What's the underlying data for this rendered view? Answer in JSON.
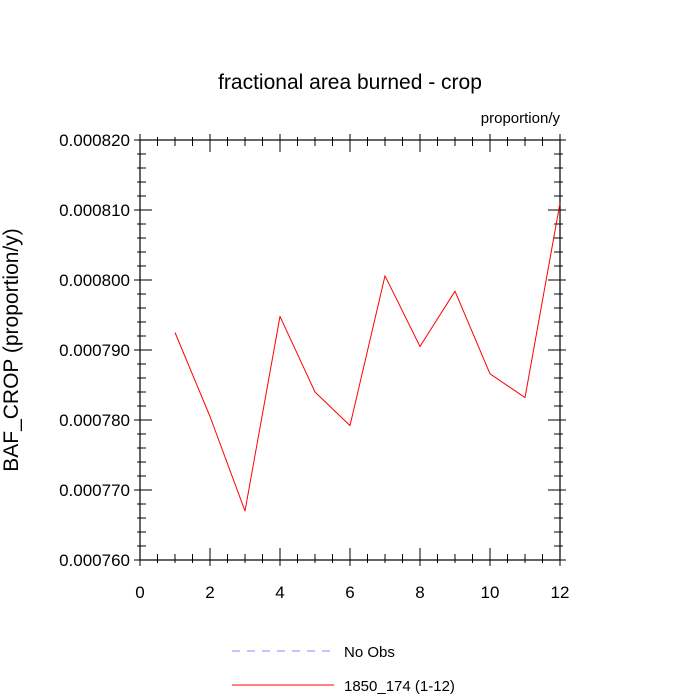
{
  "chart_data": {
    "type": "line",
    "title": "fractional area burned - crop",
    "units_label": "proportion/y",
    "ylabel": "BAF_CROP  (proportion/y)",
    "xlabel": "",
    "xlim": [
      0,
      12
    ],
    "ylim": [
      0.00076,
      0.00082
    ],
    "x_ticks": [
      0,
      2,
      4,
      6,
      8,
      10,
      12
    ],
    "x_tick_labels": [
      "0",
      "2",
      "4",
      "6",
      "8",
      "10",
      "12"
    ],
    "y_ticks": [
      0.00076,
      0.00077,
      0.00078,
      0.00079,
      0.0008,
      0.00081,
      0.00082
    ],
    "y_tick_labels": [
      "0.000760",
      "0.000770",
      "0.000780",
      "0.000790",
      "0.000800",
      "0.000810",
      "0.000820"
    ],
    "grid": false,
    "legend_position": "bottom",
    "series": [
      {
        "name": "1850_174 (1-12)",
        "color": "#ff0000",
        "style": "solid",
        "x": [
          1,
          2,
          3,
          4,
          5,
          6,
          7,
          8,
          9,
          10,
          11,
          12
        ],
        "y": [
          0.0007925,
          0.0007805,
          0.000767,
          0.0007948,
          0.000784,
          0.0007792,
          0.0008006,
          0.0007905,
          0.0007984,
          0.0007866,
          0.0007832,
          0.000811
        ]
      }
    ],
    "legend": [
      {
        "label": "No Obs",
        "color": "#8888ff",
        "style": "dashed"
      },
      {
        "label": "1850_174 (1-12)",
        "color": "#ff0000",
        "style": "solid"
      }
    ]
  }
}
